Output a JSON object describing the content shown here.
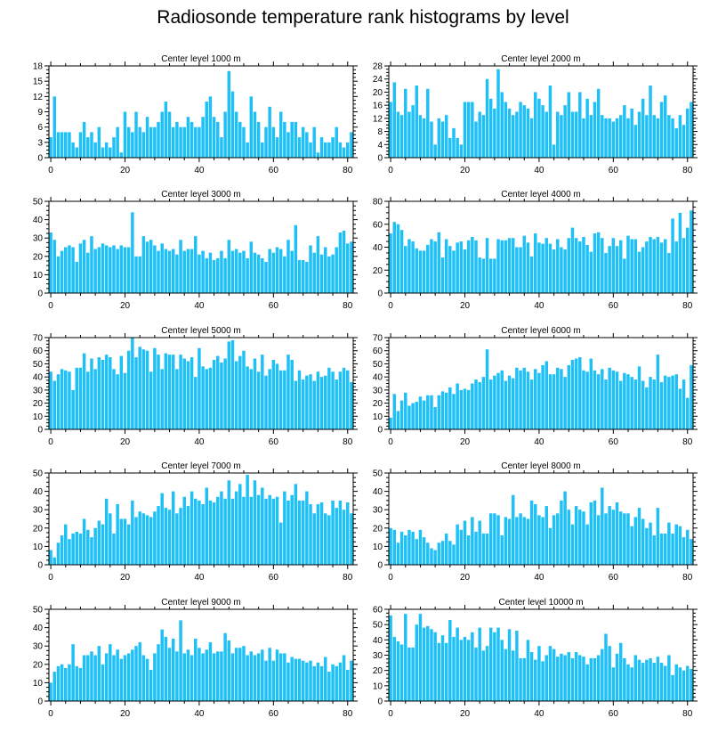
{
  "title": "Radiosonde temperature rank histograms by level",
  "colors": {
    "bar": "#1ec0f5",
    "axis": "#000000",
    "background": "#ffffff"
  },
  "chart_data": [
    {
      "type": "bar",
      "title": "Center level 1000 m",
      "ylim": [
        0,
        18
      ],
      "yticks": [
        0,
        3,
        6,
        9,
        12,
        15,
        18
      ],
      "xlim": [
        -0.5,
        81.5
      ],
      "xticks": [
        0,
        20,
        40,
        60,
        80
      ],
      "x": "0..81",
      "values": [
        4,
        12,
        5,
        5,
        5,
        5,
        3,
        2,
        5,
        7,
        4,
        5,
        3,
        6,
        2,
        3,
        2,
        4,
        6,
        1,
        9,
        6,
        5,
        9,
        6,
        5,
        8,
        6,
        6,
        7,
        9,
        11,
        9,
        6,
        7,
        6,
        6,
        8,
        7,
        6,
        6,
        8,
        11,
        12,
        8,
        7,
        4,
        9,
        17,
        13,
        9,
        7,
        6,
        3,
        12,
        9,
        7,
        3,
        6,
        10,
        6,
        4,
        9,
        7,
        5,
        7,
        7,
        4,
        6,
        5,
        3,
        6,
        1,
        4,
        3,
        3,
        4,
        6,
        3,
        2,
        3,
        5
      ]
    },
    {
      "type": "bar",
      "title": "Center level 2000 m",
      "ylim": [
        0,
        28
      ],
      "yticks": [
        0,
        4,
        8,
        12,
        16,
        20,
        24,
        28
      ],
      "xlim": [
        -0.5,
        81.5
      ],
      "xticks": [
        0,
        20,
        40,
        60,
        80
      ],
      "x": "0..81",
      "values": [
        17,
        23,
        14,
        13,
        21,
        14,
        16,
        22,
        13,
        12,
        21,
        11,
        4,
        12,
        11,
        13,
        6,
        9,
        6,
        4,
        17,
        17,
        17,
        11,
        14,
        13,
        24,
        18,
        15,
        27,
        20,
        17,
        15,
        13,
        14,
        17,
        16,
        15,
        12,
        20,
        18,
        16,
        14,
        22,
        4,
        14,
        13,
        16,
        20,
        14,
        14,
        20,
        12,
        18,
        13,
        17,
        21,
        13,
        12,
        12,
        11,
        12,
        13,
        16,
        12,
        15,
        10,
        14,
        18,
        13,
        22,
        13,
        12,
        17,
        19,
        13,
        12,
        9,
        13,
        10,
        15,
        17
      ]
    },
    {
      "type": "bar",
      "title": "Center level 3000 m",
      "ylim": [
        0,
        50
      ],
      "yticks": [
        0,
        10,
        20,
        30,
        40,
        50
      ],
      "xlim": [
        -0.5,
        81.5
      ],
      "xticks": [
        0,
        20,
        40,
        60,
        80
      ],
      "x": "0..81",
      "values": [
        33,
        29,
        20,
        23,
        25,
        26,
        25,
        17,
        27,
        29,
        22,
        31,
        24,
        25,
        27,
        26,
        25,
        26,
        24,
        26,
        25,
        25,
        44,
        20,
        20,
        31,
        28,
        29,
        26,
        23,
        27,
        24,
        23,
        24,
        21,
        29,
        23,
        24,
        24,
        31,
        21,
        23,
        19,
        22,
        18,
        19,
        23,
        19,
        29,
        23,
        24,
        22,
        23,
        19,
        28,
        22,
        21,
        19,
        17,
        24,
        22,
        25,
        24,
        20,
        29,
        23,
        37,
        18,
        18,
        17,
        26,
        22,
        31,
        21,
        25,
        20,
        21,
        25,
        33,
        34,
        27,
        28
      ]
    },
    {
      "type": "bar",
      "title": "Center level 4000 m",
      "ylim": [
        0,
        80
      ],
      "yticks": [
        0,
        20,
        40,
        60,
        80
      ],
      "xlim": [
        -0.5,
        81.5
      ],
      "xticks": [
        0,
        20,
        40,
        60,
        80
      ],
      "x": "0..81",
      "values": [
        52,
        62,
        60,
        55,
        41,
        47,
        45,
        39,
        37,
        37,
        42,
        47,
        45,
        53,
        31,
        47,
        41,
        37,
        44,
        45,
        38,
        46,
        49,
        46,
        31,
        30,
        48,
        30,
        30,
        47,
        46,
        46,
        48,
        48,
        40,
        40,
        50,
        44,
        32,
        52,
        44,
        43,
        48,
        43,
        38,
        47,
        40,
        38,
        48,
        57,
        48,
        45,
        49,
        42,
        36,
        52,
        53,
        48,
        35,
        41,
        48,
        41,
        46,
        30,
        50,
        47,
        47,
        36,
        40,
        45,
        49,
        47,
        49,
        44,
        47,
        35,
        65,
        45,
        70,
        48,
        57,
        72
      ]
    },
    {
      "type": "bar",
      "title": "Center level 5000 m",
      "ylim": [
        0,
        70
      ],
      "yticks": [
        0,
        10,
        20,
        30,
        40,
        50,
        60,
        70
      ],
      "xlim": [
        -0.5,
        81.5
      ],
      "xticks": [
        0,
        20,
        40,
        60,
        80
      ],
      "x": "0..81",
      "values": [
        44,
        37,
        42,
        46,
        45,
        44,
        30,
        47,
        47,
        58,
        44,
        54,
        46,
        55,
        53,
        57,
        55,
        46,
        42,
        56,
        43,
        60,
        70,
        55,
        63,
        61,
        60,
        44,
        62,
        57,
        46,
        58,
        57,
        57,
        46,
        57,
        54,
        52,
        55,
        40,
        62,
        48,
        46,
        47,
        53,
        56,
        51,
        54,
        67,
        68,
        52,
        56,
        60,
        48,
        46,
        54,
        44,
        57,
        41,
        46,
        53,
        50,
        45,
        45,
        57,
        53,
        37,
        45,
        38,
        41,
        42,
        37,
        44,
        40,
        41,
        47,
        44,
        38,
        44,
        47,
        45,
        36
      ]
    },
    {
      "type": "bar",
      "title": "Center level 6000 m",
      "ylim": [
        0,
        70
      ],
      "yticks": [
        0,
        10,
        20,
        30,
        40,
        50,
        60,
        70
      ],
      "xlim": [
        -0.5,
        81.5
      ],
      "xticks": [
        0,
        20,
        40,
        60,
        80
      ],
      "x": "0..81",
      "values": [
        9,
        27,
        14,
        22,
        28,
        18,
        20,
        21,
        25,
        22,
        26,
        26,
        17,
        26,
        29,
        28,
        32,
        27,
        35,
        30,
        31,
        30,
        35,
        38,
        36,
        40,
        61,
        38,
        41,
        43,
        45,
        37,
        41,
        39,
        47,
        45,
        47,
        44,
        38,
        46,
        43,
        49,
        52,
        42,
        42,
        47,
        46,
        40,
        49,
        53,
        54,
        55,
        45,
        44,
        54,
        45,
        42,
        46,
        38,
        47,
        45,
        44,
        37,
        43,
        42,
        40,
        38,
        48,
        37,
        32,
        40,
        38,
        57,
        36,
        41,
        40,
        41,
        42,
        31,
        38,
        24,
        49
      ]
    },
    {
      "type": "bar",
      "title": "Center level 7000 m",
      "ylim": [
        0,
        50
      ],
      "yticks": [
        0,
        10,
        20,
        30,
        40,
        50
      ],
      "xlim": [
        -0.5,
        81.5
      ],
      "xticks": [
        0,
        20,
        40,
        60,
        80
      ],
      "x": "0..81",
      "values": [
        8,
        4,
        12,
        16,
        22,
        14,
        17,
        18,
        17,
        25,
        19,
        15,
        20,
        24,
        22,
        36,
        28,
        17,
        33,
        25,
        25,
        22,
        35,
        26,
        29,
        28,
        27,
        26,
        29,
        32,
        39,
        31,
        30,
        40,
        28,
        31,
        37,
        32,
        40,
        36,
        35,
        33,
        42,
        35,
        34,
        37,
        40,
        36,
        46,
        36,
        40,
        44,
        37,
        49,
        37,
        46,
        38,
        42,
        36,
        38,
        36,
        37,
        23,
        40,
        35,
        38,
        44,
        35,
        35,
        40,
        33,
        28,
        33,
        34,
        28,
        27,
        35,
        31,
        35,
        30,
        34,
        28
      ]
    },
    {
      "type": "bar",
      "title": "Center level 8000 m",
      "ylim": [
        0,
        50
      ],
      "yticks": [
        0,
        10,
        20,
        30,
        40,
        50
      ],
      "xlim": [
        -0.5,
        81.5
      ],
      "xticks": [
        0,
        20,
        40,
        60,
        80
      ],
      "x": "0..81",
      "values": [
        20,
        19,
        12,
        18,
        16,
        19,
        18,
        14,
        19,
        15,
        12,
        9,
        8,
        12,
        13,
        17,
        13,
        11,
        22,
        19,
        24,
        16,
        26,
        18,
        24,
        17,
        17,
        28,
        28,
        27,
        16,
        26,
        25,
        38,
        26,
        28,
        26,
        25,
        35,
        33,
        27,
        26,
        32,
        20,
        27,
        28,
        35,
        40,
        30,
        22,
        32,
        30,
        29,
        22,
        34,
        35,
        27,
        42,
        28,
        32,
        30,
        34,
        29,
        28,
        28,
        21,
        26,
        31,
        25,
        20,
        23,
        16,
        31,
        17,
        17,
        23,
        17,
        22,
        21,
        15,
        19,
        14
      ]
    },
    {
      "type": "bar",
      "title": "Center level 9000 m",
      "ylim": [
        0,
        50
      ],
      "yticks": [
        0,
        10,
        20,
        30,
        40,
        50
      ],
      "xlim": [
        -0.5,
        81.5
      ],
      "xticks": [
        0,
        20,
        40,
        60,
        80
      ],
      "x": "0..81",
      "values": [
        10,
        16,
        19,
        20,
        18,
        20,
        31,
        19,
        18,
        25,
        25,
        27,
        25,
        30,
        20,
        26,
        31,
        25,
        28,
        23,
        25,
        26,
        28,
        30,
        32,
        25,
        23,
        17,
        26,
        31,
        39,
        35,
        29,
        34,
        27,
        44,
        26,
        28,
        25,
        34,
        29,
        26,
        28,
        32,
        26,
        27,
        27,
        37,
        33,
        26,
        29,
        29,
        30,
        25,
        27,
        25,
        26,
        28,
        22,
        29,
        22,
        28,
        26,
        26,
        21,
        24,
        23,
        23,
        22,
        21,
        22,
        19,
        21,
        19,
        24,
        16,
        20,
        19,
        21,
        25,
        17,
        22
      ]
    },
    {
      "type": "bar",
      "title": "Center level 10000 m",
      "ylim": [
        0,
        60
      ],
      "yticks": [
        0,
        10,
        20,
        30,
        40,
        50,
        60
      ],
      "xlim": [
        -0.5,
        81.5
      ],
      "xticks": [
        0,
        20,
        40,
        60,
        80
      ],
      "x": "0..81",
      "values": [
        56,
        42,
        39,
        37,
        57,
        35,
        35,
        50,
        57,
        48,
        49,
        47,
        45,
        38,
        43,
        38,
        53,
        42,
        48,
        40,
        42,
        40,
        45,
        35,
        48,
        33,
        36,
        48,
        45,
        48,
        40,
        34,
        47,
        33,
        46,
        28,
        28,
        40,
        32,
        27,
        36,
        26,
        30,
        36,
        34,
        29,
        31,
        30,
        32,
        28,
        32,
        30,
        29,
        24,
        28,
        28,
        30,
        34,
        44,
        36,
        22,
        31,
        38,
        28,
        24,
        22,
        30,
        27,
        25,
        27,
        28,
        25,
        29,
        25,
        23,
        30,
        17,
        24,
        22,
        20,
        23,
        21
      ]
    }
  ]
}
